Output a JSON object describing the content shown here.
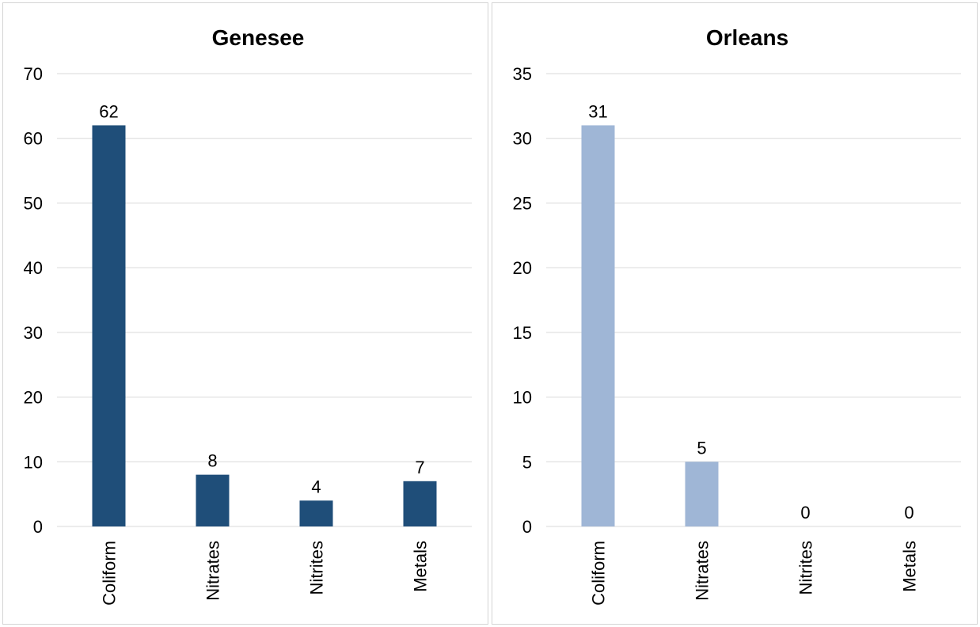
{
  "chart_data": [
    {
      "type": "bar",
      "title": "Genesee",
      "categories": [
        "Coliform",
        "Nitrates",
        "Nitrites",
        "Metals"
      ],
      "values": [
        62,
        8,
        4,
        7
      ],
      "data_labels": [
        "62",
        "8",
        "4",
        "7"
      ],
      "ylim": [
        0,
        70
      ],
      "yticks": [
        0,
        10,
        20,
        30,
        40,
        50,
        60,
        70
      ],
      "xlabel": "",
      "ylabel": "",
      "grid": true,
      "color": "#1f4e79"
    },
    {
      "type": "bar",
      "title": "Orleans",
      "categories": [
        "Coliform",
        "Nitrates",
        "Nitrites",
        "Metals"
      ],
      "values": [
        31,
        5,
        0,
        0
      ],
      "data_labels": [
        "31",
        "5",
        "0",
        "0"
      ],
      "ylim": [
        0,
        35
      ],
      "yticks": [
        0,
        5,
        10,
        15,
        20,
        25,
        30,
        35
      ],
      "xlabel": "",
      "ylabel": "",
      "grid": true,
      "color": "#9fb6d6"
    }
  ]
}
